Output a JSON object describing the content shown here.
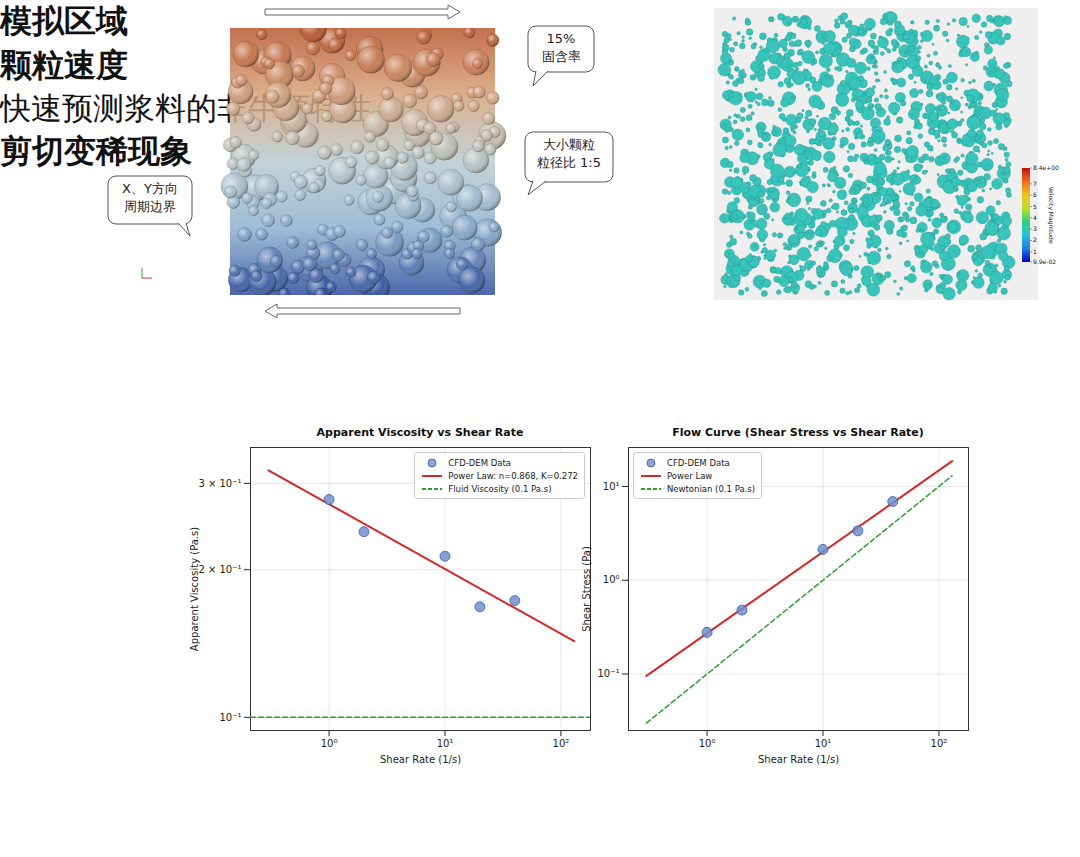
{
  "chart_data": [
    {
      "type": "line",
      "title": "Apparent Viscosity vs Shear Rate",
      "x_label": "Shear Rate (1/s)",
      "y_label": "Apparent Viscosity (Pa.s)",
      "log": true,
      "grid": true,
      "legend": "upper right",
      "xlim": [
        0.21,
        180
      ],
      "ylim": [
        0.094,
        0.355
      ],
      "xticks": [
        {
          "value": 1,
          "label": "10⁰"
        },
        {
          "value": 10,
          "label": "10¹"
        },
        {
          "value": 100,
          "label": "10²"
        }
      ],
      "yticks": [
        {
          "value": 0.1,
          "label": "10⁻¹"
        },
        {
          "value": 0.2,
          "label": "2 × 10⁻¹"
        },
        {
          "value": 0.3,
          "label": "3 × 10⁻¹"
        }
      ],
      "series": [
        {
          "name": "CFD-DEM Data",
          "type": "scatter",
          "marker": "circle",
          "color": "#6f8fcf",
          "x": [
            1,
            2,
            10,
            20,
            40
          ],
          "values": [
            0.278,
            0.239,
            0.213,
            0.168,
            0.173
          ]
        },
        {
          "name": "Power Law: n=0.868, K=0.272",
          "type": "line",
          "line_style": "solid",
          "color": "#d62728",
          "x": [
            0.3,
            130
          ],
          "values": [
            0.319,
            0.143
          ]
        },
        {
          "name": "Fluid Viscosity (0.1 Pa.s)",
          "type": "line",
          "line_style": "dashed",
          "color": "#2ca02c",
          "x": [
            0.21,
            180
          ],
          "values": [
            0.1,
            0.1
          ]
        }
      ]
    },
    {
      "type": "line",
      "title": "Flow Curve (Shear Stress vs Shear Rate)",
      "x_label": "Shear Rate (1/s)",
      "y_label": "Shear Stress (Pa)",
      "log": true,
      "grid": true,
      "legend": "upper left",
      "xlim": [
        0.21,
        180
      ],
      "ylim": [
        0.025,
        26
      ],
      "xticks": [
        {
          "value": 1,
          "label": "10⁰"
        },
        {
          "value": 10,
          "label": "10¹"
        },
        {
          "value": 100,
          "label": "10²"
        }
      ],
      "yticks": [
        {
          "value": 0.1,
          "label": "10⁻¹"
        },
        {
          "value": 1,
          "label": "10⁰"
        },
        {
          "value": 10,
          "label": "10¹"
        }
      ],
      "series": [
        {
          "name": "CFD-DEM Data",
          "type": "scatter",
          "marker": "circle",
          "color": "#6f8fcf",
          "x": [
            1,
            2,
            10,
            20,
            40
          ],
          "values": [
            0.278,
            0.48,
            2.13,
            3.36,
            6.9
          ]
        },
        {
          "name": "Power Law",
          "type": "line",
          "line_style": "solid",
          "color": "#d62728",
          "x": [
            0.3,
            130
          ],
          "values": [
            0.0955,
            18.6
          ]
        },
        {
          "name": "Newtonian (0.1 Pa.s)",
          "type": "line",
          "line_style": "dashed",
          "color": "#2ca02c",
          "x": [
            0.3,
            130
          ],
          "values": [
            0.03,
            13
          ]
        }
      ]
    }
  ],
  "panels": {
    "simulation_domain": {
      "caption": "模拟区域",
      "callouts": [
        [
          "15%",
          "固含率"
        ],
        [
          "大小颗粒",
          "粒径比 1:5"
        ],
        [
          "X、Y方向",
          "周期边界"
        ]
      ]
    },
    "particle_velocity": {
      "caption": "颗粒速度",
      "colorbar": {
        "label": "Velocity Magnitude",
        "range": [
          0.099,
          8.4
        ],
        "ticks": [
          {
            "value": 8.4,
            "label": "8.4e+00"
          },
          7,
          6,
          5,
          4,
          3,
          2,
          1,
          {
            "value": 0.099,
            "label": "9.9e-02"
          }
        ]
      }
    }
  },
  "footer": {
    "left": "快速预测浆料的非牛顿特性",
    "right": "剪切变稀现象"
  }
}
